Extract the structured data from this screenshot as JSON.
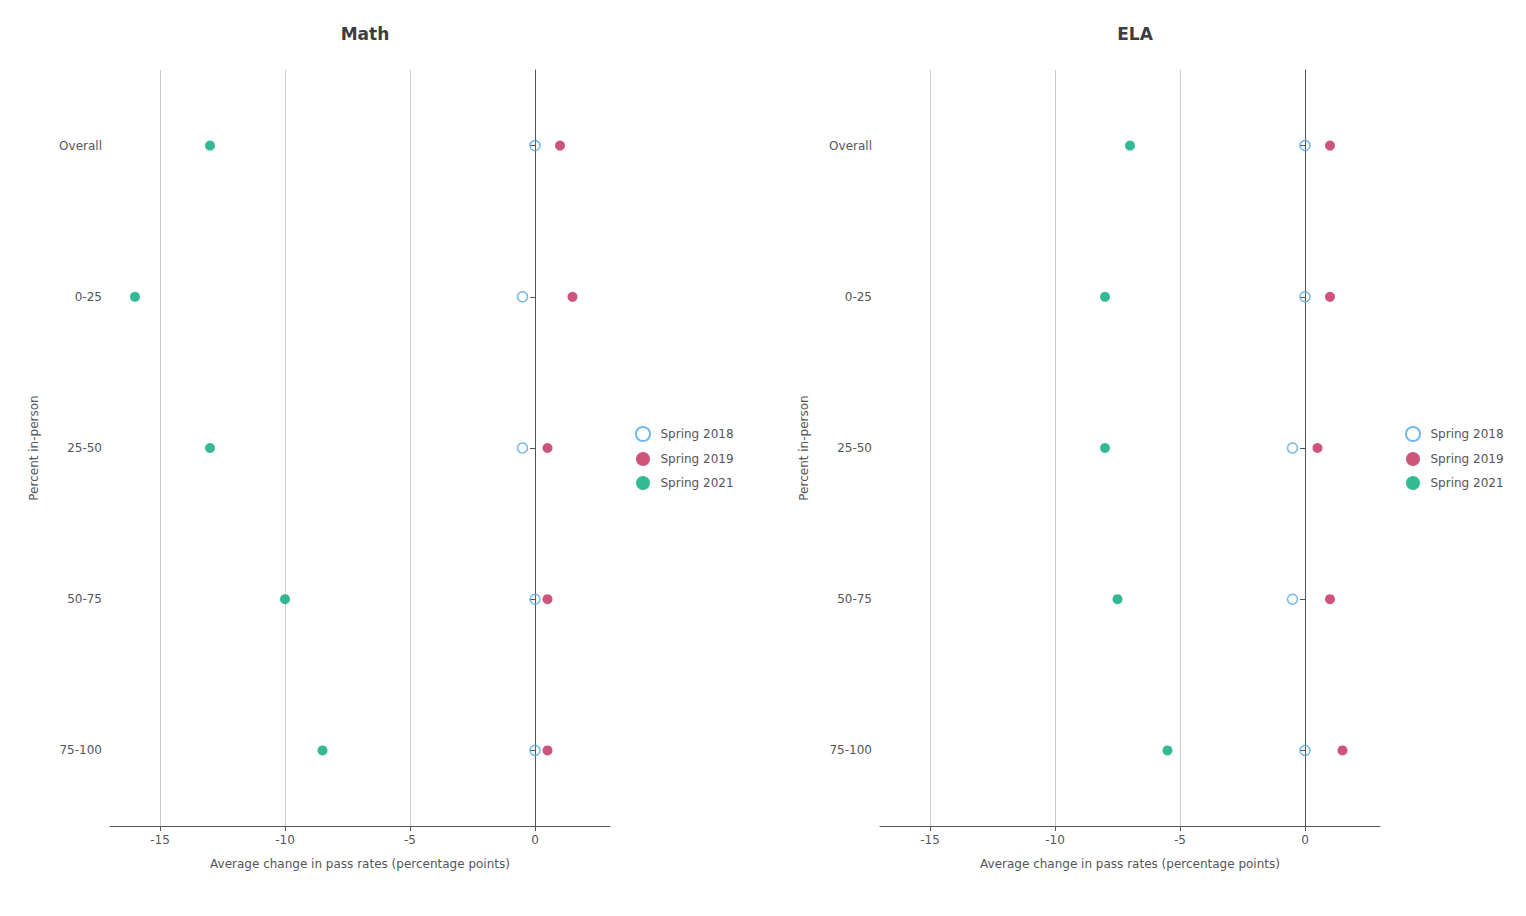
{
  "chart_data": [
    {
      "type": "scatter",
      "title": "Math",
      "categories": [
        "Overall",
        "0-25",
        "25-50",
        "50-75",
        "75-100"
      ],
      "series": [
        {
          "name": "Spring 2018",
          "color": "#4da6e8",
          "marker": "open_circle",
          "values": [
            0.0,
            -0.5,
            -0.5,
            0.0,
            0.0
          ]
        },
        {
          "name": "Spring 2019",
          "color": "#c0295a",
          "marker": "circle",
          "values": [
            1.0,
            1.5,
            0.5,
            0.5,
            0.5
          ]
        },
        {
          "name": "Spring 2021",
          "color": "#00a878",
          "marker": "circle",
          "values": [
            -13.0,
            -16.0,
            -13.0,
            -10.0,
            -8.5
          ]
        }
      ],
      "xlim": [
        -17,
        3
      ],
      "xticks": [
        -15,
        -10,
        -5,
        0
      ],
      "xlabel": "Average change in pass rates (percentage points)",
      "ylabel": "Percent in-person",
      "grid": true,
      "legend": "right"
    },
    {
      "type": "scatter",
      "title": "ELA",
      "categories": [
        "Overall",
        "0-25",
        "25-50",
        "50-75",
        "75-100"
      ],
      "series": [
        {
          "name": "Spring 2018",
          "color": "#4da6e8",
          "marker": "open_circle",
          "values": [
            0.0,
            0.0,
            -0.5,
            -0.5,
            0.0
          ]
        },
        {
          "name": "Spring 2019",
          "color": "#c0295a",
          "marker": "circle",
          "values": [
            1.0,
            1.0,
            0.5,
            1.0,
            1.5
          ]
        },
        {
          "name": "Spring 2021",
          "color": "#00a878",
          "marker": "circle",
          "values": [
            -7.0,
            -8.0,
            -8.0,
            -7.5,
            -5.5
          ]
        }
      ],
      "xlim": [
        -17,
        3
      ],
      "xticks": [
        -15,
        -10,
        -5,
        0
      ],
      "xlabel": "Average change in pass rates (percentage points)",
      "ylabel": "Percent in-person",
      "grid": true,
      "legend": "right"
    }
  ]
}
